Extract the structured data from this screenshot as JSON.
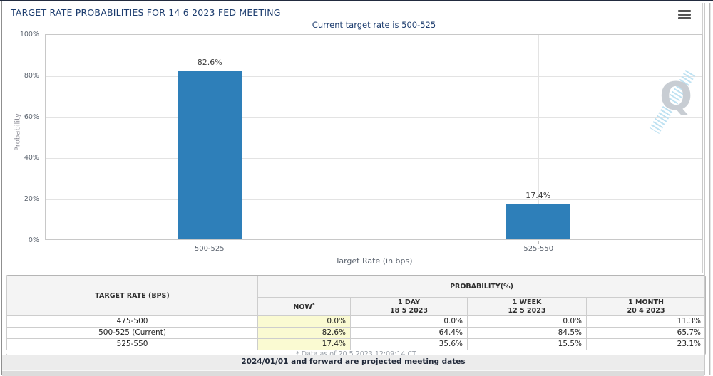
{
  "header": {
    "title": "TARGET RATE PROBABILITIES FOR 14 6 2023 FED MEETING",
    "subtitle": "Current target rate is 500-525"
  },
  "chart_data": {
    "type": "bar",
    "title": "Current target rate is 500-525",
    "categories": [
      "500-525",
      "525-550"
    ],
    "values": [
      82.6,
      17.4
    ],
    "value_labels": [
      "82.6%",
      "17.4%"
    ],
    "xlabel": "Target Rate (in bps)",
    "ylabel": "Probability",
    "ylim": [
      0,
      100
    ],
    "yticks": [
      "0%",
      "20%",
      "40%",
      "60%",
      "80%",
      "100%"
    ],
    "grid": true,
    "legend": false,
    "bar_color": "#2E7FB9",
    "watermark": "Q"
  },
  "table": {
    "rate_header": "TARGET RATE (BPS)",
    "group_header": "PROBABILITY(%)",
    "columns": [
      {
        "line1": "NOW",
        "sup": "*",
        "line2": ""
      },
      {
        "line1": "1 DAY",
        "line2": "18 5 2023"
      },
      {
        "line1": "1 WEEK",
        "line2": "12 5 2023"
      },
      {
        "line1": "1 MONTH",
        "line2": "20 4 2023"
      }
    ],
    "rows": [
      {
        "cells": [
          "475-500",
          "0.0%",
          "0.0%",
          "0.0%",
          "11.3%"
        ]
      },
      {
        "cells": [
          "500-525 (Current)",
          "82.6%",
          "64.4%",
          "84.5%",
          "65.7%"
        ]
      },
      {
        "cells": [
          "525-550",
          "17.4%",
          "35.6%",
          "15.5%",
          "23.1%"
        ]
      }
    ],
    "footnote": "* Data as of 20 5 2023 12:09:14 CT"
  },
  "footer": {
    "note": "2024/01/01 and forward are projected meeting dates"
  },
  "colors": {
    "accent_navy": "#1C3C6E",
    "bar_blue": "#2E7FB9",
    "now_cell_bg": "#FAFAD2",
    "header_cell_bg": "#F4F4F4",
    "top_border": "#222B3F"
  }
}
